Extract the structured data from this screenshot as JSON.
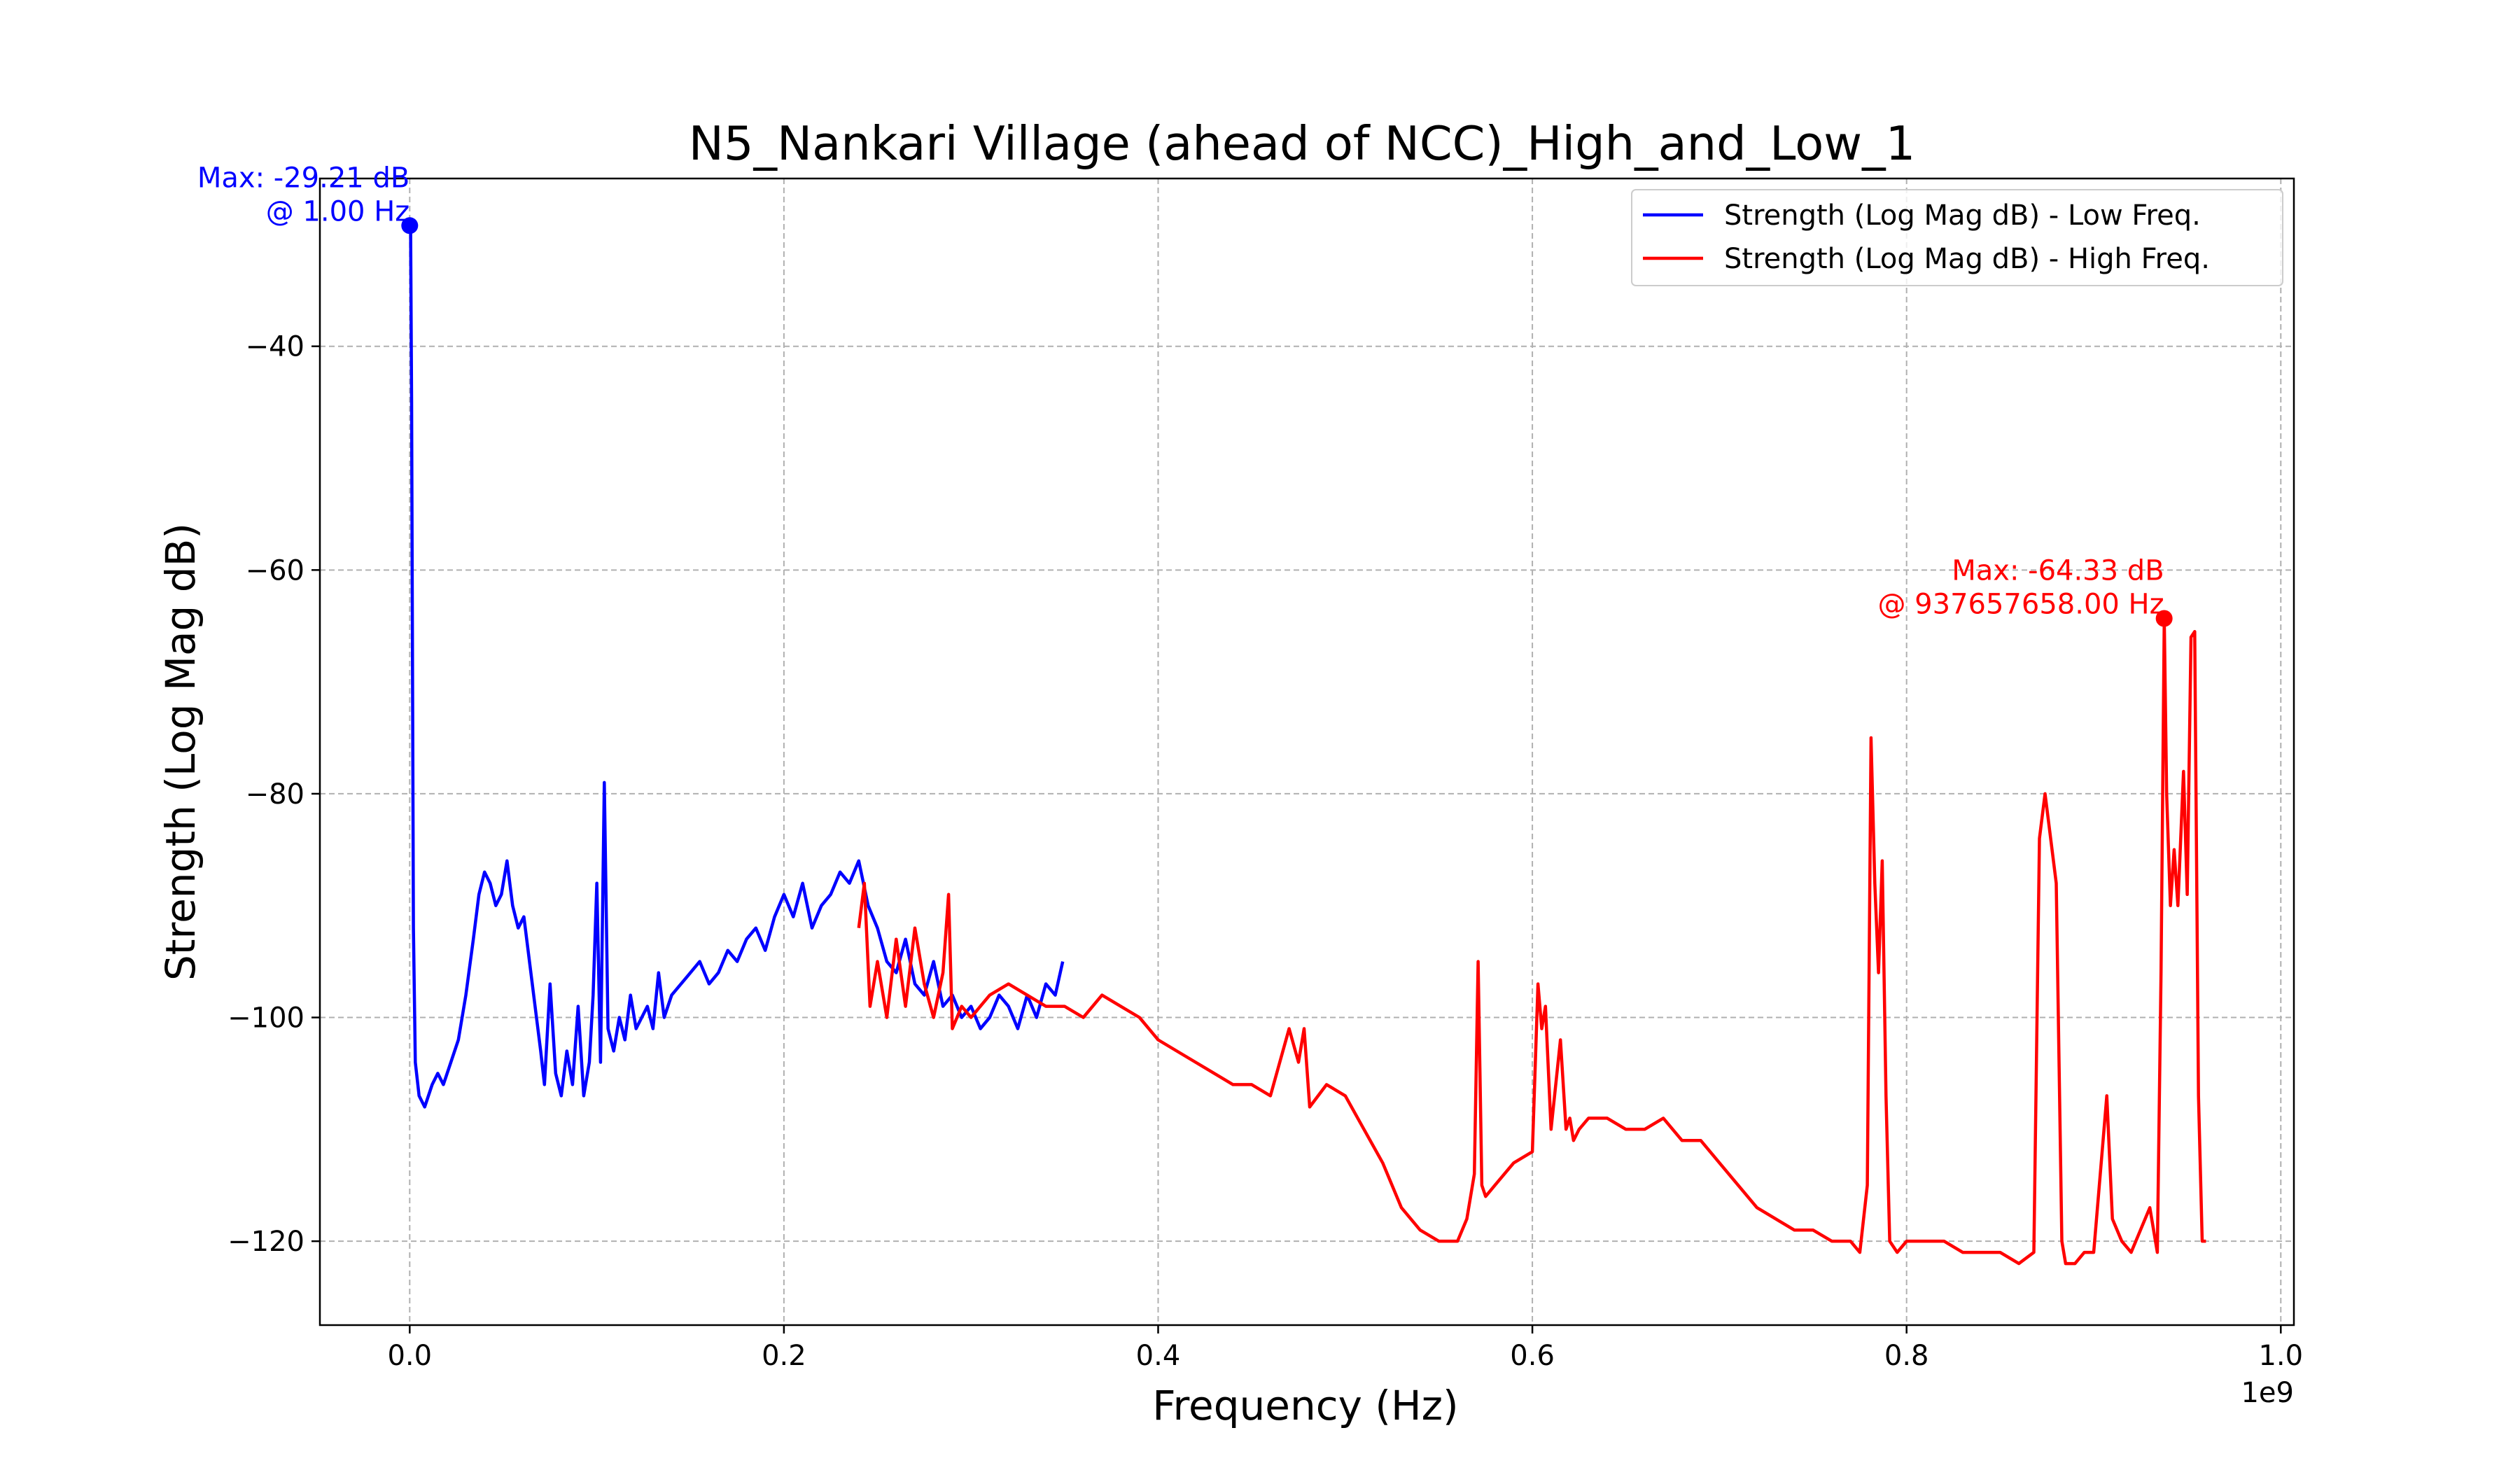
{
  "chart_data": {
    "type": "line",
    "title": "N5_Nankari Village (ahead of NCC)_High_and_Low_1",
    "xlabel": "Frequency (Hz)",
    "ylabel": "Strength (Log Mag dB)",
    "x_offset_label": "1e9",
    "x_scale_factor": 1000000000,
    "xlim": [
      -0.048,
      1.007
    ],
    "ylim": [
      -127.5,
      -25
    ],
    "x_ticks": [
      0.0,
      0.2,
      0.4,
      0.6,
      0.8,
      1.0
    ],
    "x_tick_labels": [
      "0.0",
      "0.2",
      "0.4",
      "0.6",
      "0.8",
      "1.0"
    ],
    "y_ticks": [
      -40,
      -60,
      -80,
      -100,
      -120
    ],
    "y_tick_labels": [
      "−40",
      "−60",
      "−80",
      "−100",
      "−120"
    ],
    "grid": true,
    "legend_position": "top-right",
    "series": [
      {
        "name": "Strength (Log Mag dB) - Low Freq.",
        "color": "#0000ff",
        "x": [
          0.0,
          0.0005,
          0.001,
          0.002,
          0.003,
          0.005,
          0.008,
          0.012,
          0.015,
          0.018,
          0.022,
          0.026,
          0.03,
          0.034,
          0.037,
          0.04,
          0.043,
          0.046,
          0.049,
          0.052,
          0.055,
          0.058,
          0.061,
          0.064,
          0.067,
          0.07,
          0.072,
          0.075,
          0.078,
          0.081,
          0.084,
          0.087,
          0.09,
          0.093,
          0.096,
          0.098,
          0.1,
          0.102,
          0.104,
          0.106,
          0.109,
          0.112,
          0.115,
          0.118,
          0.121,
          0.124,
          0.127,
          0.13,
          0.133,
          0.136,
          0.14,
          0.145,
          0.15,
          0.155,
          0.16,
          0.165,
          0.17,
          0.175,
          0.18,
          0.185,
          0.19,
          0.195,
          0.2,
          0.205,
          0.21,
          0.215,
          0.22,
          0.225,
          0.23,
          0.235,
          0.24,
          0.245,
          0.25,
          0.255,
          0.26,
          0.265,
          0.27,
          0.275,
          0.28,
          0.285,
          0.29,
          0.295,
          0.3,
          0.305,
          0.31,
          0.315,
          0.32,
          0.325,
          0.33,
          0.335,
          0.34,
          0.345,
          0.349
        ],
        "y": [
          -29.21,
          -29.5,
          -45,
          -92,
          -104,
          -107,
          -108,
          -106,
          -105,
          -106,
          -104,
          -102,
          -98,
          -93,
          -89,
          -87,
          -88,
          -90,
          -89,
          -86,
          -90,
          -92,
          -91,
          -95,
          -99,
          -103,
          -106,
          -97,
          -105,
          -107,
          -103,
          -106,
          -99,
          -107,
          -104,
          -98,
          -88,
          -104,
          -79,
          -101,
          -103,
          -100,
          -102,
          -98,
          -101,
          -100,
          -99,
          -101,
          -96,
          -100,
          -98,
          -97,
          -96,
          -95,
          -97,
          -96,
          -94,
          -95,
          -93,
          -92,
          -94,
          -91,
          -89,
          -91,
          -88,
          -92,
          -90,
          -89,
          -87,
          -88,
          -86,
          -90,
          -92,
          -95,
          -96,
          -93,
          -97,
          -98,
          -95,
          -99,
          -98,
          -100,
          -99,
          -101,
          -100,
          -98,
          -99,
          -101,
          -98,
          -100,
          -97,
          -98,
          -95
        ]
      },
      {
        "name": "Strength (Log Mag dB) - High Freq.",
        "color": "#ff0000",
        "x": [
          0.24,
          0.243,
          0.246,
          0.25,
          0.255,
          0.26,
          0.265,
          0.27,
          0.275,
          0.28,
          0.285,
          0.288,
          0.29,
          0.295,
          0.3,
          0.31,
          0.32,
          0.33,
          0.34,
          0.35,
          0.36,
          0.37,
          0.38,
          0.39,
          0.4,
          0.41,
          0.42,
          0.43,
          0.44,
          0.45,
          0.46,
          0.47,
          0.475,
          0.478,
          0.481,
          0.49,
          0.5,
          0.51,
          0.52,
          0.53,
          0.54,
          0.55,
          0.56,
          0.565,
          0.569,
          0.571,
          0.573,
          0.575,
          0.58,
          0.59,
          0.6,
          0.603,
          0.605,
          0.607,
          0.61,
          0.615,
          0.618,
          0.62,
          0.622,
          0.625,
          0.63,
          0.64,
          0.65,
          0.66,
          0.67,
          0.68,
          0.69,
          0.7,
          0.71,
          0.72,
          0.73,
          0.74,
          0.75,
          0.76,
          0.77,
          0.775,
          0.779,
          0.781,
          0.783,
          0.785,
          0.787,
          0.789,
          0.791,
          0.795,
          0.8,
          0.81,
          0.82,
          0.83,
          0.84,
          0.85,
          0.86,
          0.868,
          0.871,
          0.874,
          0.877,
          0.88,
          0.883,
          0.885,
          0.89,
          0.895,
          0.9,
          0.905,
          0.907,
          0.91,
          0.915,
          0.92,
          0.925,
          0.93,
          0.934,
          0.936,
          0.9377,
          0.939,
          0.941,
          0.943,
          0.945,
          0.948,
          0.95,
          0.952,
          0.954,
          0.956,
          0.958,
          0.96
        ],
        "y": [
          -92,
          -88,
          -99,
          -95,
          -100,
          -93,
          -99,
          -92,
          -97,
          -100,
          -96,
          -89,
          -101,
          -99,
          -100,
          -98,
          -97,
          -98,
          -99,
          -99,
          -100,
          -98,
          -99,
          -100,
          -102,
          -103,
          -104,
          -105,
          -106,
          -106,
          -107,
          -101,
          -104,
          -101,
          -108,
          -106,
          -107,
          -110,
          -113,
          -117,
          -119,
          -120,
          -120,
          -118,
          -114,
          -95,
          -115,
          -116,
          -115,
          -113,
          -112,
          -97,
          -101,
          -99,
          -110,
          -102,
          -110,
          -109,
          -111,
          -110,
          -109,
          -109,
          -110,
          -110,
          -109,
          -111,
          -111,
          -113,
          -115,
          -117,
          -118,
          -119,
          -119,
          -120,
          -120,
          -121,
          -115,
          -75,
          -88,
          -96,
          -86,
          -107,
          -120,
          -121,
          -120,
          -120,
          -120,
          -121,
          -121,
          -121,
          -122,
          -121,
          -84,
          -80,
          -84,
          -88,
          -120,
          -122,
          -122,
          -121,
          -121,
          -111,
          -107,
          -118,
          -120,
          -121,
          -119,
          -117,
          -121,
          -96,
          -64.33,
          -80,
          -90,
          -85,
          -90,
          -78,
          -89,
          -66,
          -65.5,
          -107,
          -120,
          -120
        ]
      }
    ],
    "annotations": [
      {
        "line1": "Max: -29.21 dB",
        "line2": "@ 1.00 Hz",
        "color": "#0000ff",
        "x": 1e-09,
        "y": -29.21
      },
      {
        "line1": "Max: -64.33 dB",
        "line2": "@ 937657658.00 Hz",
        "color": "#ff0000",
        "x": 0.937657658,
        "y": -64.33
      }
    ]
  }
}
